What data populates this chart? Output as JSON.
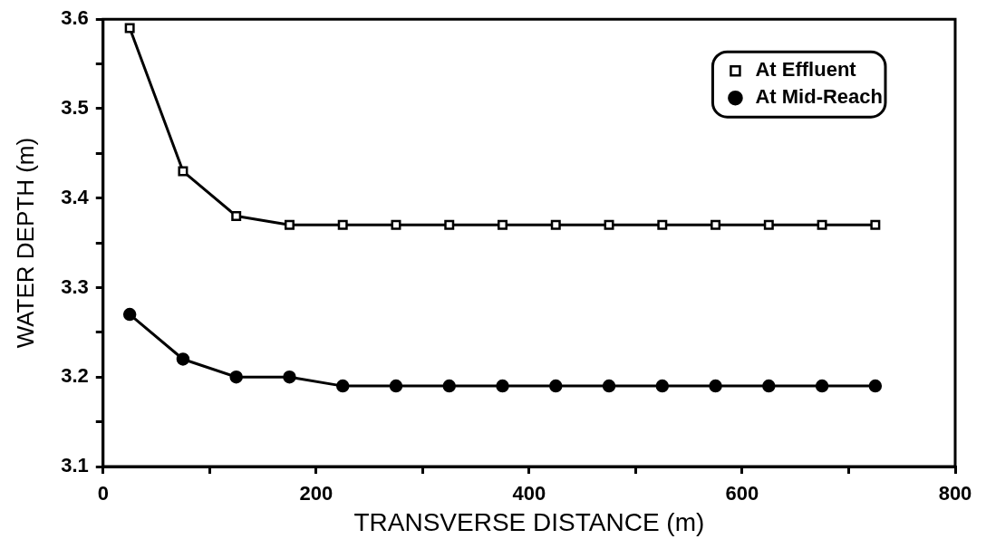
{
  "chart_data": {
    "type": "line",
    "xlabel": "TRANSVERSE DISTANCE (m)",
    "ylabel": "WATER DEPTH (m)",
    "x": [
      25,
      75,
      125,
      175,
      225,
      275,
      325,
      375,
      425,
      475,
      525,
      575,
      625,
      675,
      725
    ],
    "series": [
      {
        "name": "At Effluent",
        "color": "#000000",
        "marker": "square",
        "values": [
          3.59,
          3.43,
          3.38,
          3.37,
          3.37,
          3.37,
          3.37,
          3.37,
          3.37,
          3.37,
          3.37,
          3.37,
          3.37,
          3.37,
          3.37
        ]
      },
      {
        "name": "At Mid-Reach",
        "color": "#000000",
        "marker": "circle",
        "values": [
          3.27,
          3.22,
          3.2,
          3.2,
          3.19,
          3.19,
          3.19,
          3.19,
          3.19,
          3.19,
          3.19,
          3.19,
          3.19,
          3.19,
          3.19
        ]
      }
    ],
    "xlim": [
      0,
      800
    ],
    "xticks": [
      0,
      {
        "value": 100,
        "label": null
      },
      200,
      {
        "value": 300,
        "label": null
      },
      400,
      {
        "value": 500,
        "label": null
      },
      600,
      {
        "value": 700,
        "label": null
      },
      800
    ],
    "ylim": [
      3.1,
      3.6
    ],
    "yticks": [
      3.1,
      {
        "value": 3.15,
        "label": null
      },
      3.2,
      {
        "value": 3.25,
        "label": null
      },
      3.3,
      {
        "value": 3.35,
        "label": null
      },
      3.4,
      {
        "value": 3.45,
        "label": null
      },
      3.5,
      {
        "value": 3.55,
        "label": null
      },
      3.6
    ],
    "grid": false,
    "legend": "top right",
    "line_style": "solid"
  }
}
